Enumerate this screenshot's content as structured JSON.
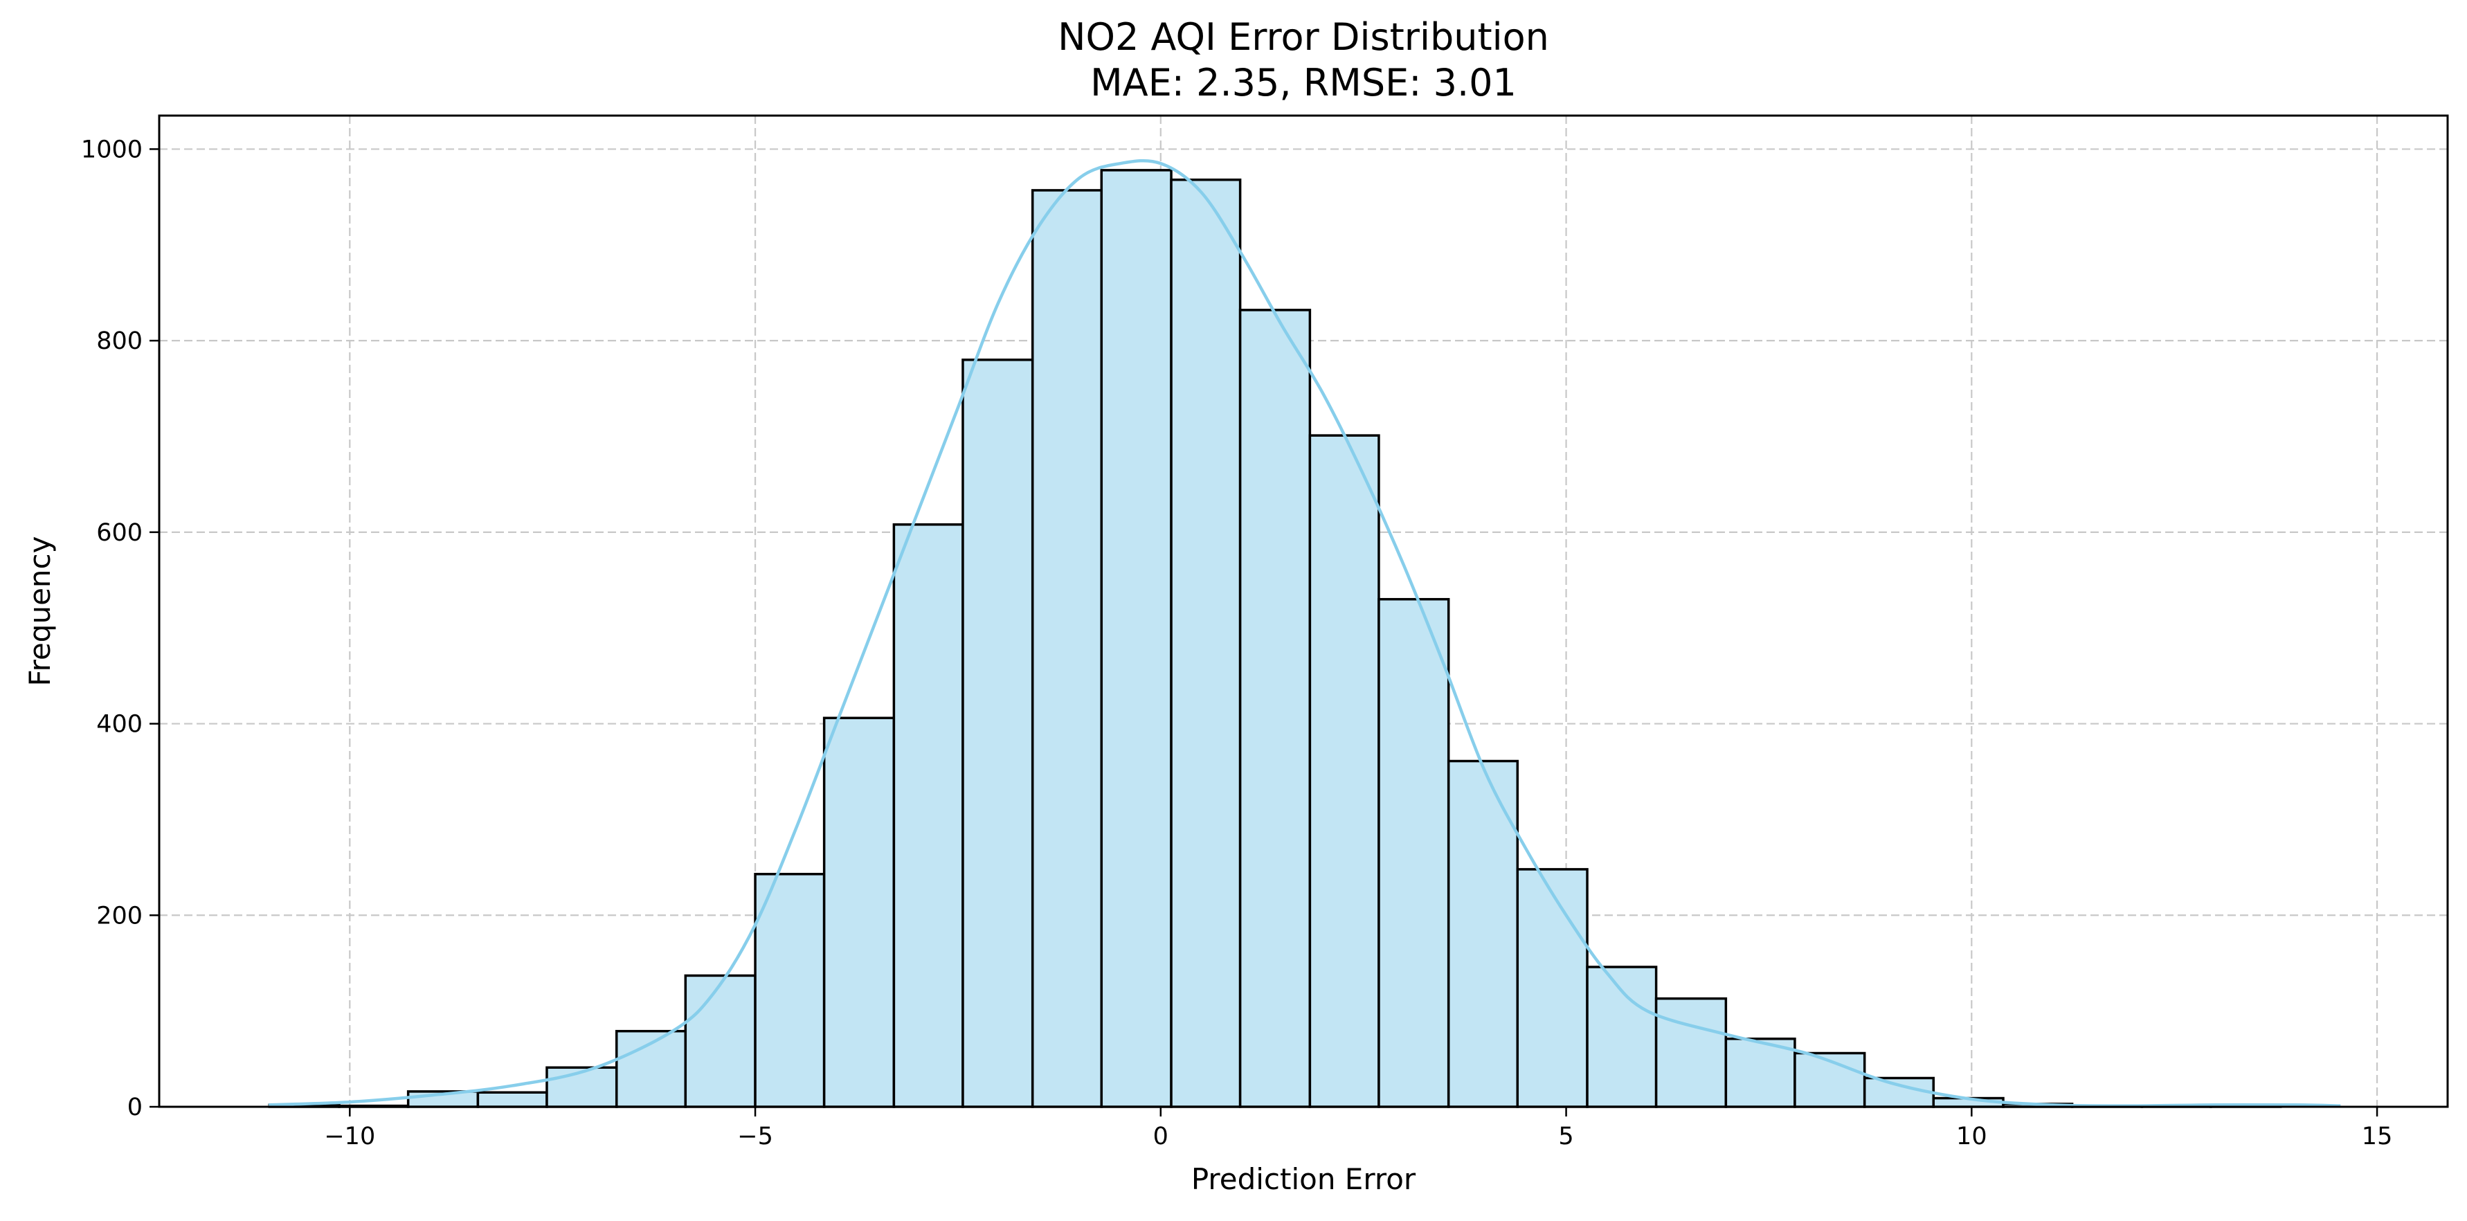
{
  "chart_data": {
    "type": "bar",
    "title": "NO2 AQI Error Distribution",
    "subtitle": "MAE: 2.35, RMSE: 3.01",
    "xlabel": "Prediction Error",
    "ylabel": "Frequency",
    "xlim": [
      -12.35,
      15.87
    ],
    "ylim": [
      0,
      1035
    ],
    "xticks": [
      -10,
      -5,
      0,
      5,
      10,
      15
    ],
    "xtick_labels": [
      "−10",
      "−5",
      "0",
      "5",
      "10",
      "15"
    ],
    "yticks": [
      0,
      200,
      400,
      600,
      800,
      1000
    ],
    "ytick_labels": [
      "0",
      "200",
      "400",
      "600",
      "800",
      "1000"
    ],
    "grid": true,
    "bin_edges": [
      -10.99,
      -10.13,
      -9.28,
      -8.42,
      -7.57,
      -6.71,
      -5.86,
      -5.0,
      -4.15,
      -3.29,
      -2.44,
      -1.58,
      -0.73,
      0.13,
      0.98,
      1.84,
      2.69,
      3.55,
      4.4,
      5.26,
      6.11,
      6.97,
      7.82,
      8.68,
      9.53,
      10.39,
      11.24,
      12.1,
      12.95,
      13.81,
      14.66
    ],
    "values": [
      2,
      1,
      16,
      15,
      41,
      79,
      137,
      243,
      406,
      608,
      780,
      957,
      978,
      968,
      832,
      701,
      530,
      361,
      248,
      146,
      113,
      71,
      56,
      30,
      9,
      3,
      1,
      1,
      2,
      0
    ],
    "bar_color": "#c2e5f4",
    "bar_edge_color": "#000000",
    "kde": {
      "color": "#87ceeb",
      "x": [
        -11.0,
        -10.0,
        -9.0,
        -8.0,
        -7.0,
        -6.0,
        -5.5,
        -5.0,
        -4.5,
        -4.0,
        -3.5,
        -3.0,
        -2.5,
        -2.0,
        -1.5,
        -1.0,
        -0.5,
        0.0,
        0.5,
        1.0,
        1.5,
        2.0,
        2.5,
        3.0,
        3.5,
        4.0,
        4.5,
        5.0,
        5.5,
        6.0,
        7.0,
        8.0,
        9.0,
        10.0,
        11.0,
        12.0,
        13.0,
        14.0,
        14.55
      ],
      "y": [
        2,
        5,
        12,
        22,
        40,
        80,
        120,
        190,
        290,
        400,
        510,
        620,
        730,
        840,
        920,
        970,
        985,
        985,
        955,
        890,
        815,
        745,
        660,
        565,
        460,
        350,
        270,
        200,
        140,
        100,
        75,
        55,
        25,
        8,
        2,
        1,
        2,
        2,
        1
      ]
    }
  }
}
